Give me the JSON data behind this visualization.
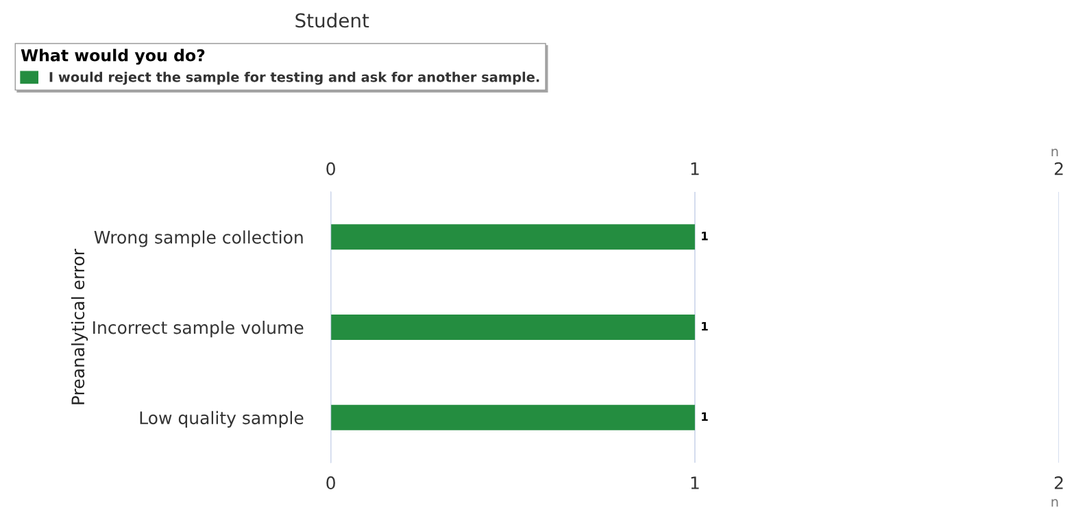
{
  "chart_data": {
    "type": "bar",
    "orientation": "horizontal",
    "title": "Student",
    "legend_title": "What would you do?",
    "categories": [
      "Wrong sample collection",
      "Incorrect sample volume",
      "Low quality sample"
    ],
    "series": [
      {
        "name": "I would reject the sample for testing and ask for another sample.",
        "color": "#248d40",
        "values": [
          1,
          1,
          1
        ]
      }
    ],
    "xlim": [
      0,
      2
    ],
    "xticks": [
      0,
      1,
      2
    ],
    "x2lim": [
      0,
      2
    ],
    "x2ticks": [
      0,
      1,
      2
    ],
    "xlabel": "n",
    "x2label": "n",
    "ylabel": "Preanalytical error",
    "data_labels": true,
    "grid": "x",
    "legend": "top left"
  }
}
